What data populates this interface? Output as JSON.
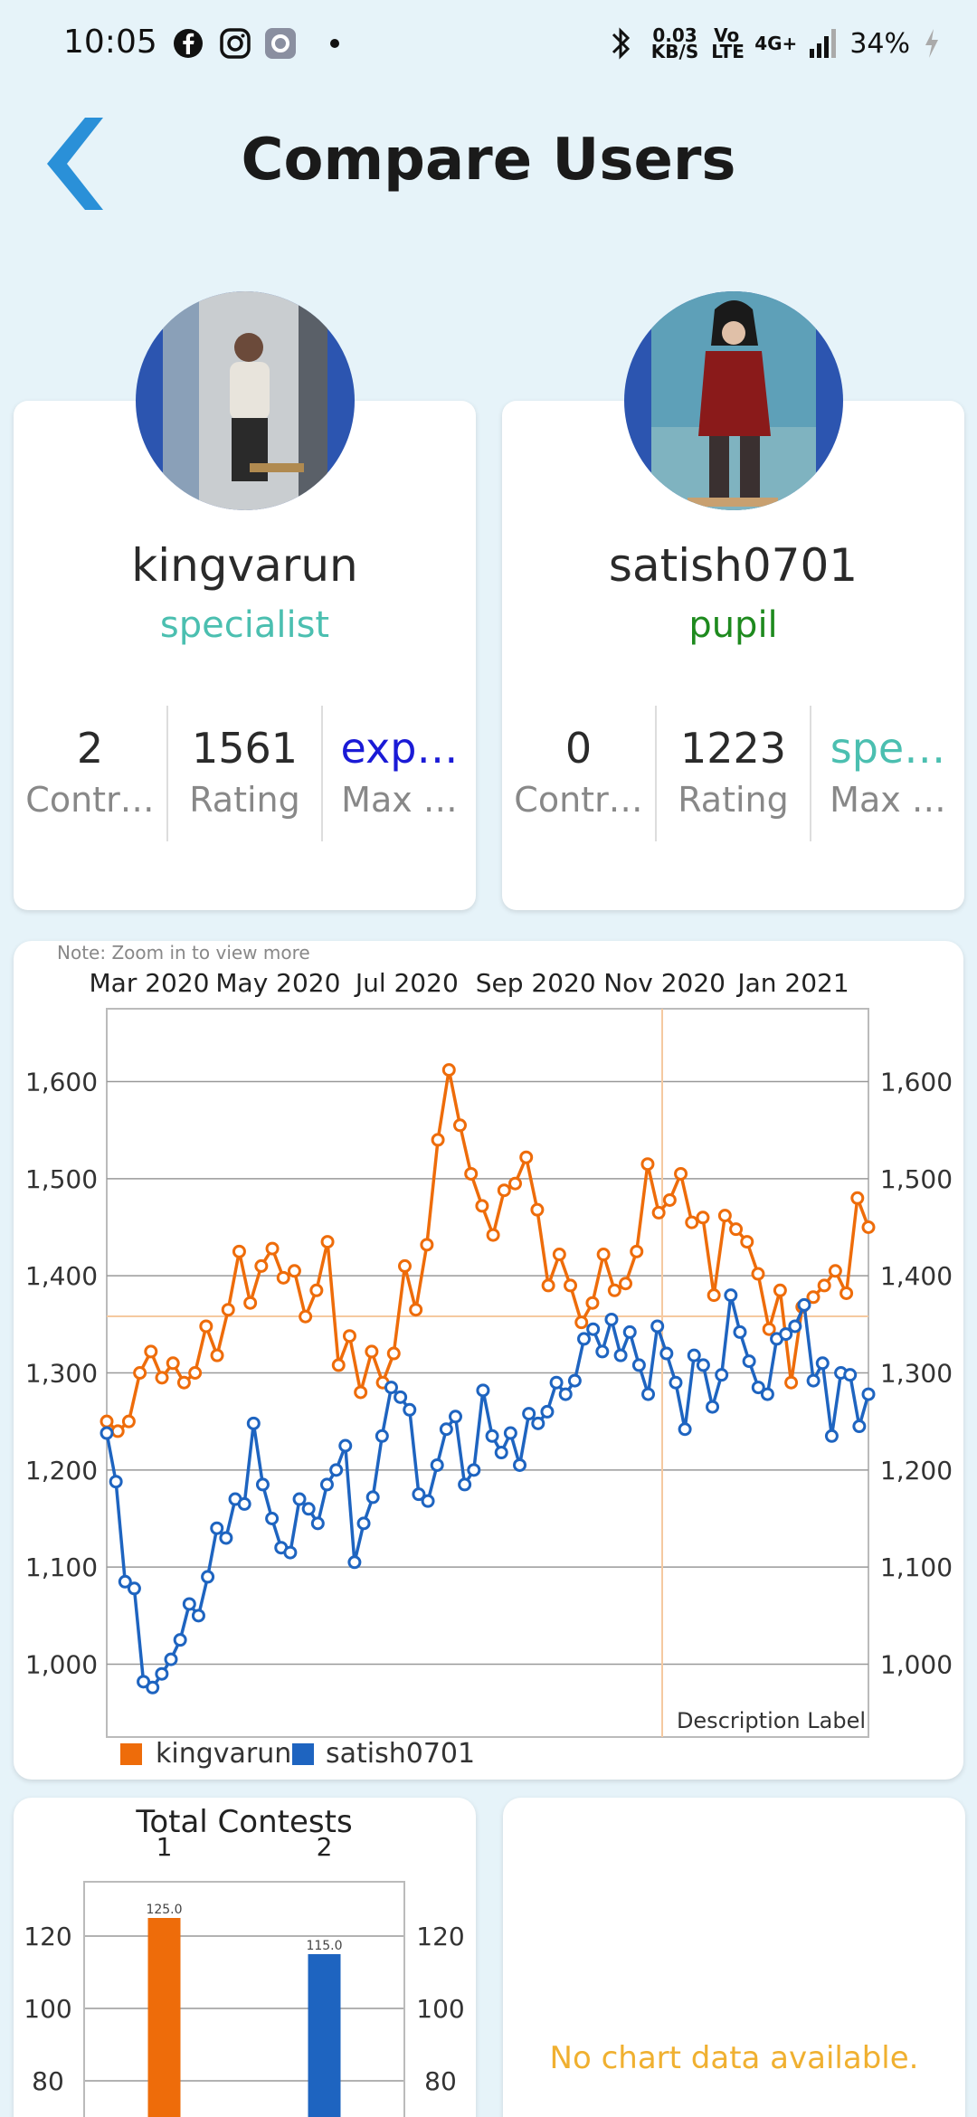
{
  "status_bar": {
    "time": "10:05",
    "network_speed": "0.03",
    "network_unit": "KB/S",
    "volte": "Vo LTE",
    "network_type": "4G+",
    "battery": "34%",
    "icons": [
      "facebook-icon",
      "instagram-icon",
      "settings-app-icon",
      "dot-icon",
      "bluetooth-icon",
      "signal-icon",
      "charging-icon"
    ]
  },
  "header": {
    "title": "Compare Users"
  },
  "users": [
    {
      "name": "kingvarun",
      "rank": "specialist",
      "rank_color": "#4bbfb0",
      "stats": [
        {
          "value": "2",
          "label": "Contr…"
        },
        {
          "value": "1561",
          "label": "Rating"
        },
        {
          "value": "exp…",
          "label": "Max …",
          "value_color": "#1a1ad6"
        }
      ]
    },
    {
      "name": "satish0701",
      "rank": "pupil",
      "rank_color": "#1e8a1e",
      "stats": [
        {
          "value": "0",
          "label": "Contr…"
        },
        {
          "value": "1223",
          "label": "Rating"
        },
        {
          "value": "spe…",
          "label": "Max …",
          "value_color": "#4bbfb0"
        }
      ]
    }
  ],
  "rating_chart": {
    "note": "Note: Zoom in to view more",
    "description": "Description Label",
    "chart_data": {
      "type": "line",
      "x_tick_labels": [
        "Mar 2020",
        "May 2020",
        "Jul 2020",
        "Sep 2020",
        "Nov 2020",
        "Jan 2021"
      ],
      "y_ticks": [
        "1,000",
        "1,100",
        "1,200",
        "1,300",
        "1,400",
        "1,500",
        "1,600"
      ],
      "ylim": [
        925,
        1675
      ],
      "grid": true,
      "legend_position": "bottom-left",
      "series": [
        {
          "name": "kingvarun",
          "color": "#ee6c0a",
          "values": [
            1250,
            1240,
            1250,
            1300,
            1322,
            1295,
            1310,
            1290,
            1300,
            1348,
            1318,
            1365,
            1425,
            1372,
            1410,
            1428,
            1398,
            1405,
            1358,
            1385,
            1435,
            1308,
            1338,
            1280,
            1322,
            1290,
            1320,
            1410,
            1365,
            1432,
            1540,
            1612,
            1555,
            1505,
            1472,
            1442,
            1488,
            1495,
            1522,
            1468,
            1390,
            1422,
            1390,
            1352,
            1372,
            1422,
            1385,
            1392,
            1425,
            1515,
            1465,
            1478,
            1505,
            1455,
            1460,
            1380,
            1462,
            1448,
            1435,
            1402,
            1345,
            1385,
            1290,
            1368,
            1378,
            1390,
            1405,
            1382,
            1480,
            1450
          ]
        },
        {
          "name": "satish0701",
          "color": "#1e64c0",
          "values": [
            1238,
            1188,
            1085,
            1078,
            982,
            976,
            990,
            1005,
            1025,
            1062,
            1050,
            1090,
            1140,
            1130,
            1170,
            1165,
            1248,
            1185,
            1150,
            1120,
            1115,
            1170,
            1160,
            1145,
            1185,
            1200,
            1225,
            1105,
            1145,
            1172,
            1235,
            1285,
            1275,
            1262,
            1175,
            1168,
            1205,
            1242,
            1255,
            1185,
            1200,
            1282,
            1235,
            1218,
            1238,
            1205,
            1258,
            1248,
            1260,
            1290,
            1278,
            1292,
            1335,
            1345,
            1322,
            1355,
            1318,
            1342,
            1308,
            1278,
            1348,
            1320,
            1290,
            1242,
            1318,
            1308,
            1265,
            1298,
            1380,
            1342,
            1312,
            1285,
            1278,
            1335,
            1340,
            1348,
            1370,
            1292,
            1310,
            1235,
            1300,
            1298,
            1245,
            1278
          ]
        }
      ]
    }
  },
  "contests_chart": {
    "chart_data": {
      "type": "bar",
      "title": "Total Contests",
      "categories": [
        "1",
        "2"
      ],
      "values": [
        125.0,
        115.0
      ],
      "value_labels": [
        "125.0",
        "115.0"
      ],
      "colors": [
        "#ee6c0a",
        "#1e64c0"
      ],
      "y_ticks": [
        "80",
        "100",
        "120"
      ],
      "ylim": [
        60,
        135
      ]
    }
  },
  "empty_chart": {
    "message": "No chart data available."
  }
}
